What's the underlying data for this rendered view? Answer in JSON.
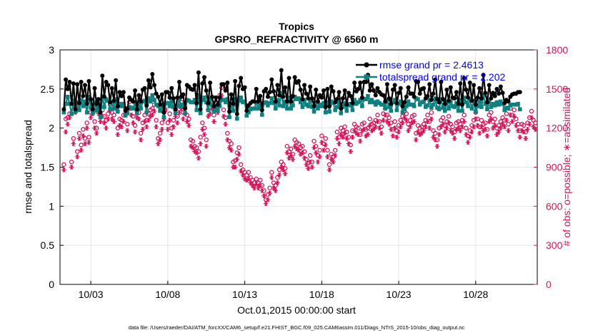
{
  "chart_data": {
    "type": "line",
    "title": "Tropics",
    "subtitle": "GPSRO_REFRACTIVITY @ 6560 m",
    "xlabel": "Oct.01,2015 00:00:00 start",
    "ylabel_left": "rmse and totalspread",
    "ylabel_right": "# of obs: o=possible; ∗=assimilated",
    "footer": "data file: /Users/raeder/DAI/ATM_forcXX/CAM6_setup/f.e21.FHIST_BGC.f09_025.CAM6assim.011/Diags_NTrS_2015-10/obs_diag_output.nc",
    "x_ticks": [
      {
        "day": 3,
        "label": "10/03"
      },
      {
        "day": 8,
        "label": "10/08"
      },
      {
        "day": 13,
        "label": "10/13"
      },
      {
        "day": 18,
        "label": "10/18"
      },
      {
        "day": 23,
        "label": "10/23"
      },
      {
        "day": 28,
        "label": "10/28"
      }
    ],
    "xlim": [
      1.0,
      32.0
    ],
    "ylim_left": [
      0,
      3
    ],
    "ylim_right": [
      0,
      1800
    ],
    "y_ticks_left": [
      "0",
      "0.5",
      "1",
      "1.5",
      "2",
      "2.5",
      "3"
    ],
    "y_ticks_right": [
      "0",
      "300",
      "600",
      "900",
      "1200",
      "1500",
      "1800"
    ],
    "legend": [
      {
        "label": "rmse grand pr = 2.4613",
        "color": "#000000"
      },
      {
        "label": "totalspread grand pr = 2.202",
        "color": "#0f8080"
      }
    ],
    "legend_position": "top-right",
    "colors": {
      "rmse": "#000000",
      "spread": "#0f8080",
      "obs": "#d4145a",
      "legend_text": "#0000ff",
      "right_axis": "#d4145a",
      "grid": "#e6e6e6"
    },
    "series": [
      {
        "name": "rmse",
        "values": [
          2.24,
          2.62,
          2.5,
          2.59,
          2.31,
          2.57,
          2.24,
          2.56,
          2.32,
          2.59,
          2.41,
          2.55,
          2.31,
          2.6,
          2.37,
          2.24,
          2.51,
          2.31,
          2.37,
          2.2,
          2.67,
          2.4,
          2.59,
          2.55,
          2.33,
          2.51,
          2.35,
          2.61,
          2.28,
          2.46,
          2.41,
          2.46,
          2.22,
          2.25,
          2.39,
          2.36,
          2.34,
          2.48,
          2.24,
          2.42,
          2.34,
          2.49,
          2.51,
          2.29,
          2.61,
          2.52,
          2.69,
          2.55,
          2.44,
          2.4,
          2.3,
          2.43,
          2.2,
          2.46,
          2.46,
          2.39,
          2.51,
          2.38,
          2.24,
          2.39,
          2.59,
          2.4,
          2.43,
          2.25,
          2.55,
          2.53,
          2.5,
          2.49,
          2.55,
          2.32,
          2.71,
          2.24,
          2.57,
          2.65,
          2.48,
          2.32,
          2.58,
          2.4,
          2.28,
          2.39,
          2.3,
          2.39,
          2.56,
          2.56,
          2.48,
          2.58,
          2.21,
          2.43,
          2.31,
          2.6,
          2.18,
          2.54,
          2.64,
          2.5,
          2.52,
          2.22,
          2.29,
          2.32,
          2.34,
          2.34,
          2.5,
          2.34,
          2.41,
          2.23,
          2.47,
          2.5,
          2.4,
          2.46,
          2.62,
          2.47,
          2.34,
          2.55,
          2.42,
          2.74,
          2.4,
          2.52,
          2.34,
          2.64,
          2.34,
          2.41,
          2.65,
          2.58,
          2.6,
          2.49,
          2.37,
          2.55,
          2.44,
          2.38,
          2.53,
          2.38,
          2.28,
          2.49,
          2.34,
          2.42,
          2.39,
          2.48,
          2.27,
          2.5,
          2.28,
          2.53,
          2.47,
          2.33,
          2.37,
          2.46,
          2.25,
          2.38,
          2.48,
          2.3,
          2.45,
          2.41,
          2.32,
          2.58,
          2.47,
          2.5,
          2.58,
          2.39,
          2.59,
          2.59,
          2.68,
          2.48,
          2.56,
          2.48,
          2.42,
          2.51,
          2.46,
          2.43,
          2.42,
          2.34,
          2.56,
          2.38,
          2.31,
          2.49,
          2.55,
          2.32,
          2.45,
          2.51,
          2.28,
          2.33,
          2.4,
          2.52,
          2.44,
          2.44,
          2.4,
          2.6,
          2.59,
          2.44,
          2.5,
          2.51,
          2.38,
          2.41,
          2.56,
          2.36,
          2.44,
          2.62,
          2.37,
          2.33,
          2.59,
          2.37,
          2.31,
          2.49,
          2.35,
          2.52,
          2.39,
          2.38,
          2.46,
          2.31,
          2.57,
          2.3,
          2.64,
          2.49,
          2.39,
          2.58,
          2.35,
          2.55,
          2.3,
          2.39,
          2.51,
          2.38,
          2.68,
          2.45,
          2.33,
          2.55,
          2.38,
          2.45,
          2.41,
          2.5,
          2.44,
          2.53,
          2.45,
          2.32,
          2.36,
          2.34,
          2.4,
          2.43,
          2.44,
          2.44,
          2.46,
          2.46
        ]
      },
      {
        "name": "totalspread",
        "values": [
          2.2,
          2.31,
          2.4,
          2.31,
          2.18,
          2.35,
          2.21,
          2.33,
          2.23,
          2.36,
          2.28,
          2.34,
          2.2,
          2.4,
          2.26,
          2.19,
          2.33,
          2.22,
          2.27,
          2.14,
          2.41,
          2.27,
          2.37,
          2.35,
          2.24,
          2.33,
          2.25,
          2.37,
          2.21,
          2.31,
          2.28,
          2.31,
          2.16,
          2.19,
          2.27,
          2.26,
          2.25,
          2.33,
          2.19,
          2.3,
          2.25,
          2.34,
          2.35,
          2.2,
          2.38,
          2.34,
          2.42,
          2.36,
          2.3,
          2.28,
          2.22,
          2.3,
          2.14,
          2.32,
          2.32,
          2.28,
          2.34,
          2.27,
          2.19,
          2.28,
          2.37,
          2.28,
          2.3,
          2.19,
          2.36,
          2.35,
          2.33,
          2.33,
          2.36,
          2.23,
          2.42,
          2.19,
          2.36,
          2.39,
          2.33,
          2.23,
          2.37,
          2.29,
          2.21,
          2.28,
          2.22,
          2.28,
          2.36,
          2.36,
          2.33,
          2.37,
          2.14,
          2.31,
          2.22,
          2.37,
          2.12,
          2.35,
          2.39,
          2.33,
          2.34,
          2.16,
          2.2,
          2.24,
          2.25,
          2.25,
          2.33,
          2.25,
          2.29,
          2.17,
          2.32,
          2.33,
          2.29,
          2.32,
          2.38,
          2.32,
          2.25,
          2.36,
          2.29,
          2.45,
          2.28,
          2.34,
          2.25,
          2.39,
          2.25,
          2.29,
          2.4,
          2.37,
          2.38,
          2.33,
          2.27,
          2.36,
          2.3,
          2.28,
          2.35,
          2.27,
          2.21,
          2.33,
          2.25,
          2.3,
          2.28,
          2.32,
          2.2,
          2.33,
          2.21,
          2.34,
          2.32,
          2.23,
          2.27,
          2.32,
          2.19,
          2.27,
          2.32,
          2.22,
          2.31,
          2.29,
          2.23,
          2.36,
          2.31,
          2.33,
          2.36,
          2.28,
          2.37,
          2.37,
          2.41,
          2.33,
          2.36,
          2.33,
          2.3,
          2.34,
          2.32,
          2.3,
          2.3,
          2.25,
          2.36,
          2.27,
          2.22,
          2.33,
          2.36,
          2.23,
          2.31,
          2.34,
          2.2,
          2.24,
          2.28,
          2.34,
          2.3,
          2.3,
          2.28,
          2.38,
          2.37,
          2.3,
          2.33,
          2.34,
          2.27,
          2.29,
          2.36,
          2.26,
          2.3,
          2.38,
          2.26,
          2.24,
          2.37,
          2.26,
          2.22,
          2.33,
          2.25,
          2.34,
          2.28,
          2.27,
          2.32,
          2.22,
          2.36,
          2.22,
          2.39,
          2.33,
          2.28,
          2.37,
          2.25,
          2.35,
          2.21,
          2.28,
          2.34,
          2.27,
          2.42,
          2.31,
          2.24,
          2.35,
          2.27,
          2.31,
          2.29,
          2.33,
          2.3,
          2.34,
          2.31,
          2.23,
          2.26,
          2.25,
          2.29,
          2.3,
          2.3,
          2.3,
          2.31,
          2.24
        ]
      },
      {
        "name": "possible",
        "axis": "right",
        "values": [
          920,
          1270,
          1280,
          1310,
          940,
          1120,
          1360,
          1020,
          1160,
          1070,
          1190,
          1120,
          1240,
          1130,
          1320,
          1350,
          1250,
          1200,
          1360,
          1300,
          1340,
          1290,
          1260,
          1310,
          1380,
          1320,
          1300,
          1400,
          1200,
          1270,
          1260,
          1300,
          1350,
          1230,
          1400,
          1350,
          1290,
          1220,
          1330,
          1320,
          1160,
          1240,
          1300,
          1260,
          1310,
          1340,
          1350,
          1380,
          1260,
          1120,
          1160,
          1240,
          1320,
          1390,
          1240,
          1310,
          1200,
          1260,
          1340,
          1290,
          1370,
          1400,
          1320,
          1360,
          1300,
          1270,
          1110,
          1100,
          1060,
          1050,
          1020,
          1130,
          1240,
          1200,
          1110,
          1340,
          1360,
          1400,
          1300,
          1390,
          1370,
          1450,
          1510,
          1340,
          1280,
          1160,
          1100,
          1080,
          940,
          950,
          1010,
          1050,
          920,
          880,
          860,
          840,
          860,
          820,
          800,
          780,
          810,
          780,
          800,
          760,
          720,
          650,
          690,
          740,
          860,
          780,
          760,
          820,
          880,
          940,
          920,
          890,
          1060,
          1020,
          1040,
          1000,
          1110,
          1090,
          1080,
          1050,
          1060,
          1020,
          960,
          930,
          990,
          940,
          1100,
          1060,
          990,
          1030,
          1140,
          1080,
          1120,
          1030,
          920,
          1000,
          980,
          1030,
          1170,
          1130,
          1200,
          1180,
          1210,
          1170,
          1130,
          1070,
          1180,
          1230,
          1210,
          1200,
          1150,
          1230,
          1240,
          1190,
          1200,
          1270,
          1230,
          1240,
          1260,
          1300,
          1250,
          1210,
          1310,
          1350,
          1300,
          1280,
          1240,
          1190,
          1250,
          1180,
          1220,
          1260,
          1290,
          1330,
          1310,
          1230,
          1260,
          1290,
          1300,
          1160,
          1220,
          1200,
          1210,
          1230,
          1260,
          1300,
          1250,
          1320,
          1180,
          1160,
          1110,
          1200,
          1260,
          1280,
          1220,
          1250,
          1290,
          1230,
          1210,
          1170,
          1240,
          1250,
          1230,
          1260,
          1300,
          1200,
          1140,
          1180,
          1220,
          1260,
          1320,
          1270,
          1210,
          1260,
          1230,
          1240,
          1190,
          1300,
          1320,
          1250,
          1270,
          1200,
          1220,
          1250,
          1280,
          1260,
          1310,
          1230,
          1350,
          1300,
          1340,
          1270,
          1230,
          1180,
          1230,
          1220,
          1170,
          1240,
          1280,
          1330,
          1260,
          1240
        ]
      },
      {
        "name": "assimilated",
        "axis": "right",
        "values": [
          880,
          1170,
          1230,
          1280,
          900,
          1080,
          1320,
          980,
          1120,
          1030,
          1140,
          1080,
          1200,
          1090,
          1280,
          1310,
          1200,
          1160,
          1310,
          1250,
          1290,
          1240,
          1200,
          1270,
          1330,
          1270,
          1250,
          1350,
          1150,
          1220,
          1210,
          1250,
          1300,
          1180,
          1350,
          1300,
          1240,
          1170,
          1280,
          1270,
          1110,
          1190,
          1250,
          1210,
          1260,
          1290,
          1300,
          1330,
          1210,
          1080,
          1110,
          1190,
          1270,
          1340,
          1190,
          1260,
          1150,
          1210,
          1290,
          1240,
          1320,
          1350,
          1270,
          1310,
          1250,
          1220,
          1060,
          1050,
          1020,
          1010,
          970,
          1080,
          1190,
          1150,
          1060,
          1290,
          1310,
          1350,
          1250,
          1340,
          1320,
          1400,
          1450,
          1290,
          1230,
          1110,
          1050,
          1030,
          900,
          900,
          960,
          1000,
          870,
          840,
          810,
          800,
          810,
          780,
          760,
          740,
          770,
          740,
          760,
          720,
          680,
          620,
          650,
          700,
          820,
          740,
          720,
          780,
          840,
          900,
          880,
          850,
          1010,
          970,
          990,
          960,
          1060,
          1040,
          1030,
          1000,
          1010,
          970,
          920,
          890,
          940,
          900,
          1050,
          1010,
          940,
          980,
          1090,
          1030,
          1070,
          980,
          880,
          960,
          940,
          990,
          1120,
          1080,
          1150,
          1130,
          1160,
          1120,
          1080,
          1020,
          1130,
          1180,
          1160,
          1150,
          1100,
          1180,
          1190,
          1140,
          1150,
          1220,
          1180,
          1190,
          1210,
          1250,
          1200,
          1160,
          1260,
          1300,
          1250,
          1230,
          1190,
          1140,
          1200,
          1130,
          1170,
          1210,
          1240,
          1280,
          1260,
          1180,
          1210,
          1240,
          1250,
          1110,
          1170,
          1150,
          1160,
          1180,
          1210,
          1250,
          1200,
          1270,
          1130,
          1110,
          1060,
          1150,
          1210,
          1230,
          1170,
          1200,
          1240,
          1180,
          1160,
          1120,
          1190,
          1200,
          1180,
          1210,
          1250,
          1150,
          1090,
          1130,
          1170,
          1210,
          1270,
          1220,
          1160,
          1210,
          1180,
          1190,
          1140,
          1250,
          1270,
          1200,
          1220,
          1150,
          1170,
          1200,
          1230,
          1210,
          1260,
          1180,
          1300,
          1250,
          1290,
          1220,
          1180,
          1130,
          1180,
          1170,
          1120,
          1190,
          1230,
          1280,
          1210,
          1190
        ]
      }
    ],
    "x_start_day": 1.25,
    "x_step_day": 0.125
  }
}
